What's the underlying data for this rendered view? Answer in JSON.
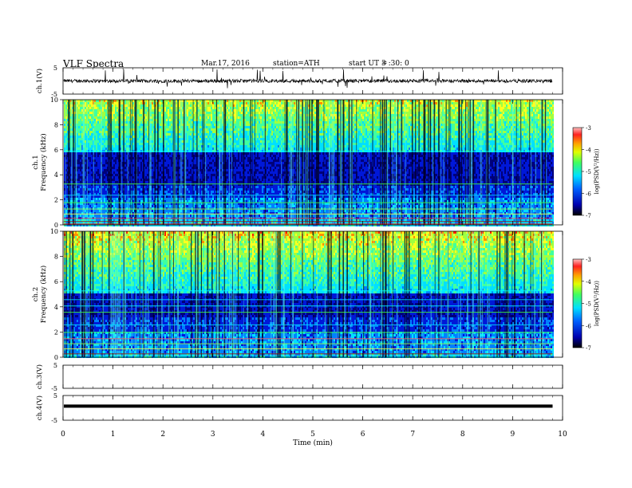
{
  "header": {
    "title": "VLF  Spectra",
    "date": "Mar.17, 2016",
    "station": "station=ATH",
    "start_label": "start  UT =",
    "start_time": "3 :30: 0"
  },
  "chart_data": [
    {
      "type": "line",
      "panel": "ch1-waveform",
      "ylabel": "ch.1(V)",
      "yticks": [
        "5",
        "-5"
      ],
      "ylim": [
        -5,
        5
      ],
      "xlim": [
        0,
        10
      ],
      "baseline": 0,
      "color": "#000000"
    },
    {
      "type": "heatmap",
      "panel": "ch1-spectrogram",
      "ylabel": "ch.1\nFrequency (kHz)",
      "ylabel_lines": [
        "ch.1",
        "Frequency  (kHz)"
      ],
      "yticks": [
        "10",
        "8",
        "6",
        "4",
        "2",
        "0"
      ],
      "ylim": [
        0,
        10
      ],
      "xlim": [
        0,
        9.8
      ],
      "colorbar": {
        "label": "log(PSD(V²/Hz))",
        "ticks": [
          "-3",
          "-4",
          "-5",
          "-6",
          "-7"
        ],
        "range": [
          -7,
          -3
        ]
      }
    },
    {
      "type": "heatmap",
      "panel": "ch2-spectrogram",
      "ylabel": "ch.2\nFrequency (kHz)",
      "ylabel_lines": [
        "ch.2",
        "Frequency  (kHz)"
      ],
      "yticks": [
        "10",
        "8",
        "6",
        "4",
        "2",
        "0"
      ],
      "ylim": [
        0,
        10
      ],
      "xlim": [
        0,
        9.8
      ],
      "colorbar": {
        "label": "log(PSD(V²/Hz))",
        "ticks": [
          "-3",
          "-4",
          "-5",
          "-6",
          "-7"
        ],
        "range": [
          -7,
          -3
        ]
      }
    },
    {
      "type": "line",
      "panel": "ch3-waveform",
      "ylabel": "ch.3(V)",
      "yticks": [
        "5",
        "-5"
      ],
      "ylim": [
        -5,
        5
      ],
      "xlim": [
        0,
        10
      ]
    },
    {
      "type": "line",
      "panel": "ch4-waveform",
      "ylabel": "ch.4(V)",
      "yticks": [
        "5",
        "-5"
      ],
      "ylim": [
        -5,
        5
      ],
      "xlim": [
        0,
        10
      ],
      "baseline": 0.7
    }
  ],
  "xaxis": {
    "label": "Time  (min)",
    "ticks": [
      "0",
      "1",
      "2",
      "3",
      "4",
      "5",
      "6",
      "7",
      "8",
      "9",
      "10"
    ],
    "range": [
      0,
      10
    ]
  },
  "colors": {
    "dark": "#000040",
    "low": "#0000d0",
    "mid": "#00c8ff",
    "high": "#40ff80",
    "peak": "#ffff00",
    "max": "#ff0000"
  }
}
